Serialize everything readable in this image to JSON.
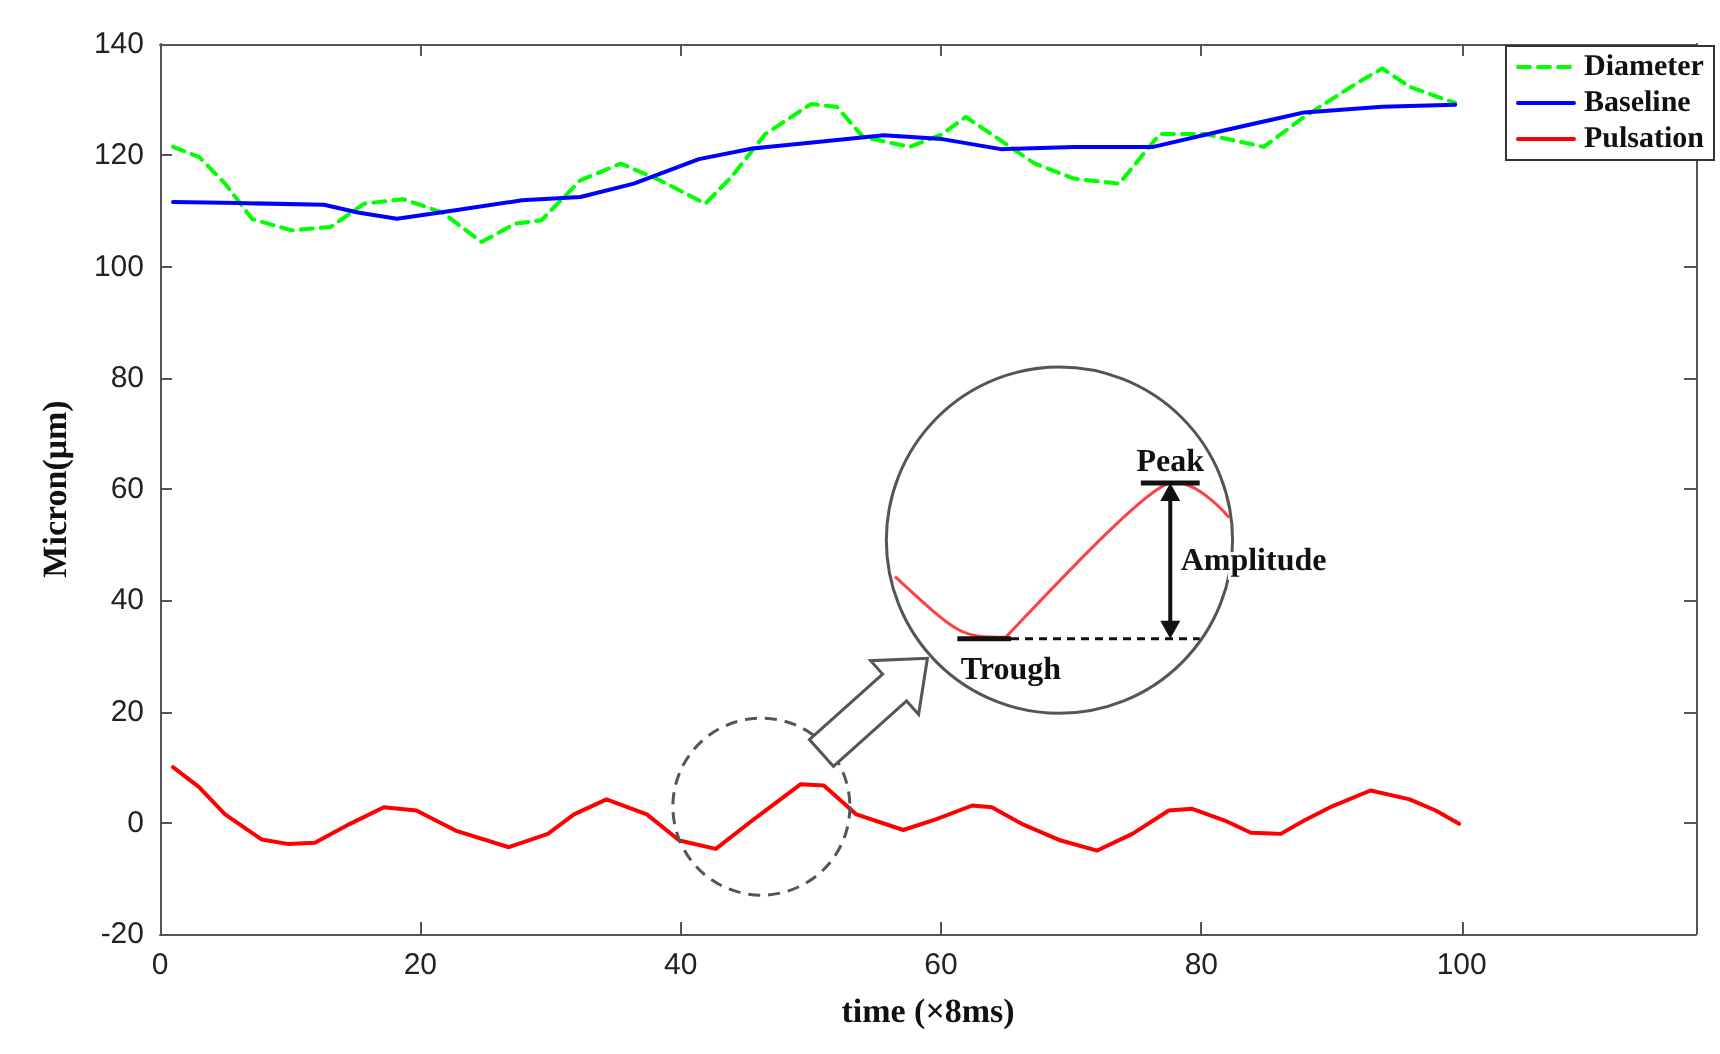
{
  "chart_data": {
    "type": "line",
    "xlabel": "time (×8ms)",
    "ylabel": "Micron(μm)",
    "xlim": [
      0,
      118
    ],
    "xticks": [
      0,
      20,
      40,
      60,
      80,
      100
    ],
    "ylim": [
      -20,
      140
    ],
    "yticks": [
      -20,
      0,
      20,
      40,
      60,
      80,
      100,
      120,
      140
    ],
    "grid": false,
    "legend": "top right",
    "marker": "none",
    "annotations": [
      "Peak",
      "Amplitude",
      "Trough"
    ],
    "series": [
      {
        "name": "Diameter",
        "color": "#00ff00",
        "line_style": "dashed",
        "x": [
          1,
          3,
          5,
          7.1,
          10.1,
          13.1,
          15.7,
          18.7,
          21.7,
          24.7,
          27.3,
          29.3,
          32.3,
          35.4,
          38.4,
          41.9,
          43.9,
          46.5,
          50,
          52,
          54,
          57.6,
          60.1,
          61.9,
          67.2,
          70.2,
          73.7,
          76.8,
          80.3,
          84.8,
          87.9,
          91.9,
          93.9,
          96,
          99.5
        ],
        "values": [
          121.5,
          119.7,
          114.9,
          108.5,
          106.5,
          107.1,
          111.3,
          112.1,
          109.7,
          104.4,
          107.7,
          108.3,
          115.5,
          118.5,
          115.5,
          111.3,
          116.1,
          123.8,
          129.2,
          128.7,
          123.3,
          121.5,
          123.8,
          126.9,
          118.5,
          115.8,
          114.9,
          123.8,
          123.8,
          121.5,
          126.9,
          132.9,
          135.6,
          132.3,
          129.4
        ]
      },
      {
        "name": "Baseline",
        "color": "#0000ff",
        "line_style": "solid",
        "x": [
          1,
          6.1,
          12.6,
          15.2,
          18.2,
          22.7,
          27.8,
          32.3,
          36.4,
          41.4,
          45.5,
          50.5,
          55.6,
          60.1,
          64.6,
          70.2,
          76.3,
          81.8,
          87.9,
          93.9,
          99.5
        ],
        "values": [
          111.6,
          111.4,
          111.1,
          109.7,
          108.6,
          110.1,
          111.9,
          112.5,
          114.9,
          119.3,
          121.2,
          122.4,
          123.6,
          122.9,
          121.1,
          121.5,
          121.5,
          124.5,
          127.7,
          128.7,
          129.1
        ]
      },
      {
        "name": "Pulsation",
        "color": "#ff0000",
        "line_style": "solid",
        "x": [
          1,
          3,
          5,
          7.8,
          9.8,
          11.9,
          14.6,
          17.2,
          19.7,
          22.7,
          26.8,
          29.8,
          31.8,
          34.3,
          37.4,
          39.9,
          42.7,
          45.5,
          49.2,
          51,
          53.5,
          57.1,
          59.6,
          62.4,
          63.9,
          66.2,
          69.2,
          72,
          74.7,
          77.5,
          79.3,
          81.8,
          83.8,
          86.1,
          87.9,
          89.9,
          93,
          96,
          98,
          99.8
        ],
        "values": [
          10,
          6.4,
          1.5,
          -3,
          -3.8,
          -3.6,
          -0.2,
          2.8,
          2.2,
          -1.4,
          -4.4,
          -2,
          1.5,
          4.2,
          1.5,
          -3.2,
          -4.7,
          0.4,
          6.9,
          6.7,
          1.5,
          -1.3,
          0.6,
          3.1,
          2.8,
          -0.2,
          -3.2,
          -5,
          -2,
          2.2,
          2.5,
          0.4,
          -1.8,
          -2,
          0.4,
          2.8,
          5.8,
          4.2,
          2.2,
          -0.2
        ]
      }
    ]
  }
}
